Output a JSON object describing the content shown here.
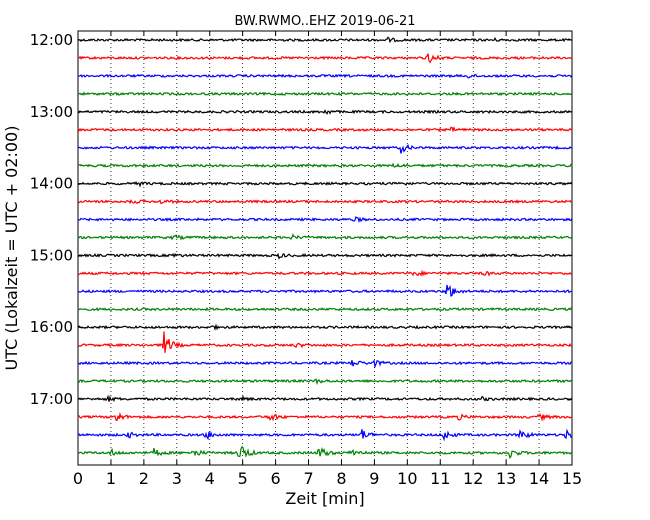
{
  "chart_data": {
    "type": "line",
    "title": "BW.RWMO..EHZ 2019-06-21",
    "xlabel": "Zeit  [min]",
    "ylabel": "UTC (Lokalzeit = UTC + 02:00)",
    "xlim": [
      0,
      15
    ],
    "x_ticks": [
      "0",
      "1",
      "2",
      "3",
      "4",
      "5",
      "6",
      "7",
      "8",
      "9",
      "10",
      "11",
      "12",
      "13",
      "14",
      "15"
    ],
    "y_tick_labels": [
      "12:00",
      "13:00",
      "14:00",
      "15:00",
      "16:00",
      "17:00"
    ],
    "grid": "vertical dotted",
    "trace_colors": [
      "#000000",
      "#ff0000",
      "#0000ff",
      "#008000"
    ],
    "traces": [
      {
        "start": "12:00",
        "events": [
          {
            "t": 9.4,
            "a": 2
          },
          {
            "t": 12.5,
            "a": 2
          }
        ]
      },
      {
        "start": "12:15",
        "events": [
          {
            "t": 10.6,
            "a": 6
          }
        ]
      },
      {
        "start": "12:30",
        "events": [
          {
            "t": 11.8,
            "a": 2
          }
        ]
      },
      {
        "start": "12:45",
        "events": []
      },
      {
        "start": "13:00",
        "events": [
          {
            "t": 7.5,
            "a": 2
          }
        ]
      },
      {
        "start": "13:15",
        "events": [
          {
            "t": 11.3,
            "a": 2
          }
        ]
      },
      {
        "start": "13:30",
        "events": [
          {
            "t": 9.8,
            "a": 5
          }
        ]
      },
      {
        "start": "13:45",
        "events": [
          {
            "t": 9.6,
            "a": 2
          }
        ]
      },
      {
        "start": "14:00",
        "events": [
          {
            "t": 9.7,
            "a": 2
          },
          {
            "t": 1.8,
            "a": 2
          }
        ]
      },
      {
        "start": "14:15",
        "events": [
          {
            "t": 1.6,
            "a": 2
          },
          {
            "t": 2.5,
            "a": 2
          }
        ]
      },
      {
        "start": "14:30",
        "events": [
          {
            "t": 8.4,
            "a": 2
          }
        ]
      },
      {
        "start": "14:45",
        "events": [
          {
            "t": 2.9,
            "a": 2
          },
          {
            "t": 6.5,
            "a": 2
          }
        ]
      },
      {
        "start": "15:00",
        "events": [
          {
            "t": 2.8,
            "a": 2
          },
          {
            "t": 6.1,
            "a": 2
          }
        ]
      },
      {
        "start": "15:15",
        "events": [
          {
            "t": 10.2,
            "a": 3
          },
          {
            "t": 12.3,
            "a": 2
          }
        ]
      },
      {
        "start": "15:30",
        "events": [
          {
            "t": 11.2,
            "a": 10
          }
        ]
      },
      {
        "start": "15:45",
        "events": []
      },
      {
        "start": "16:00",
        "events": [
          {
            "t": 4.0,
            "a": 2
          }
        ]
      },
      {
        "start": "16:15",
        "events": [
          {
            "t": 2.6,
            "a": 14
          },
          {
            "t": 6.6,
            "a": 2
          }
        ]
      },
      {
        "start": "16:30",
        "events": [
          {
            "t": 8.3,
            "a": 4
          },
          {
            "t": 8.9,
            "a": 5
          }
        ]
      },
      {
        "start": "16:45",
        "events": [
          {
            "t": 7.2,
            "a": 2
          }
        ]
      },
      {
        "start": "17:00",
        "events": [
          {
            "t": 0.9,
            "a": 2
          },
          {
            "t": 4.9,
            "a": 2
          },
          {
            "t": 12.2,
            "a": 2
          }
        ]
      },
      {
        "start": "17:15",
        "events": [
          {
            "t": 1.1,
            "a": 7
          },
          {
            "t": 5.8,
            "a": 5
          },
          {
            "t": 11.5,
            "a": 3
          },
          {
            "t": 14.0,
            "a": 3
          }
        ]
      },
      {
        "start": "17:30",
        "events": [
          {
            "t": 1.5,
            "a": 3
          },
          {
            "t": 3.9,
            "a": 4
          },
          {
            "t": 8.6,
            "a": 6
          },
          {
            "t": 11.1,
            "a": 5
          },
          {
            "t": 13.4,
            "a": 6
          },
          {
            "t": 14.8,
            "a": 5
          }
        ]
      },
      {
        "start": "17:45",
        "events": [
          {
            "t": 1.0,
            "a": 3
          },
          {
            "t": 2.3,
            "a": 4
          },
          {
            "t": 3.5,
            "a": 4
          },
          {
            "t": 4.9,
            "a": 12
          },
          {
            "t": 7.3,
            "a": 8
          },
          {
            "t": 8.3,
            "a": 4
          },
          {
            "t": 13.1,
            "a": 5
          }
        ]
      }
    ]
  }
}
